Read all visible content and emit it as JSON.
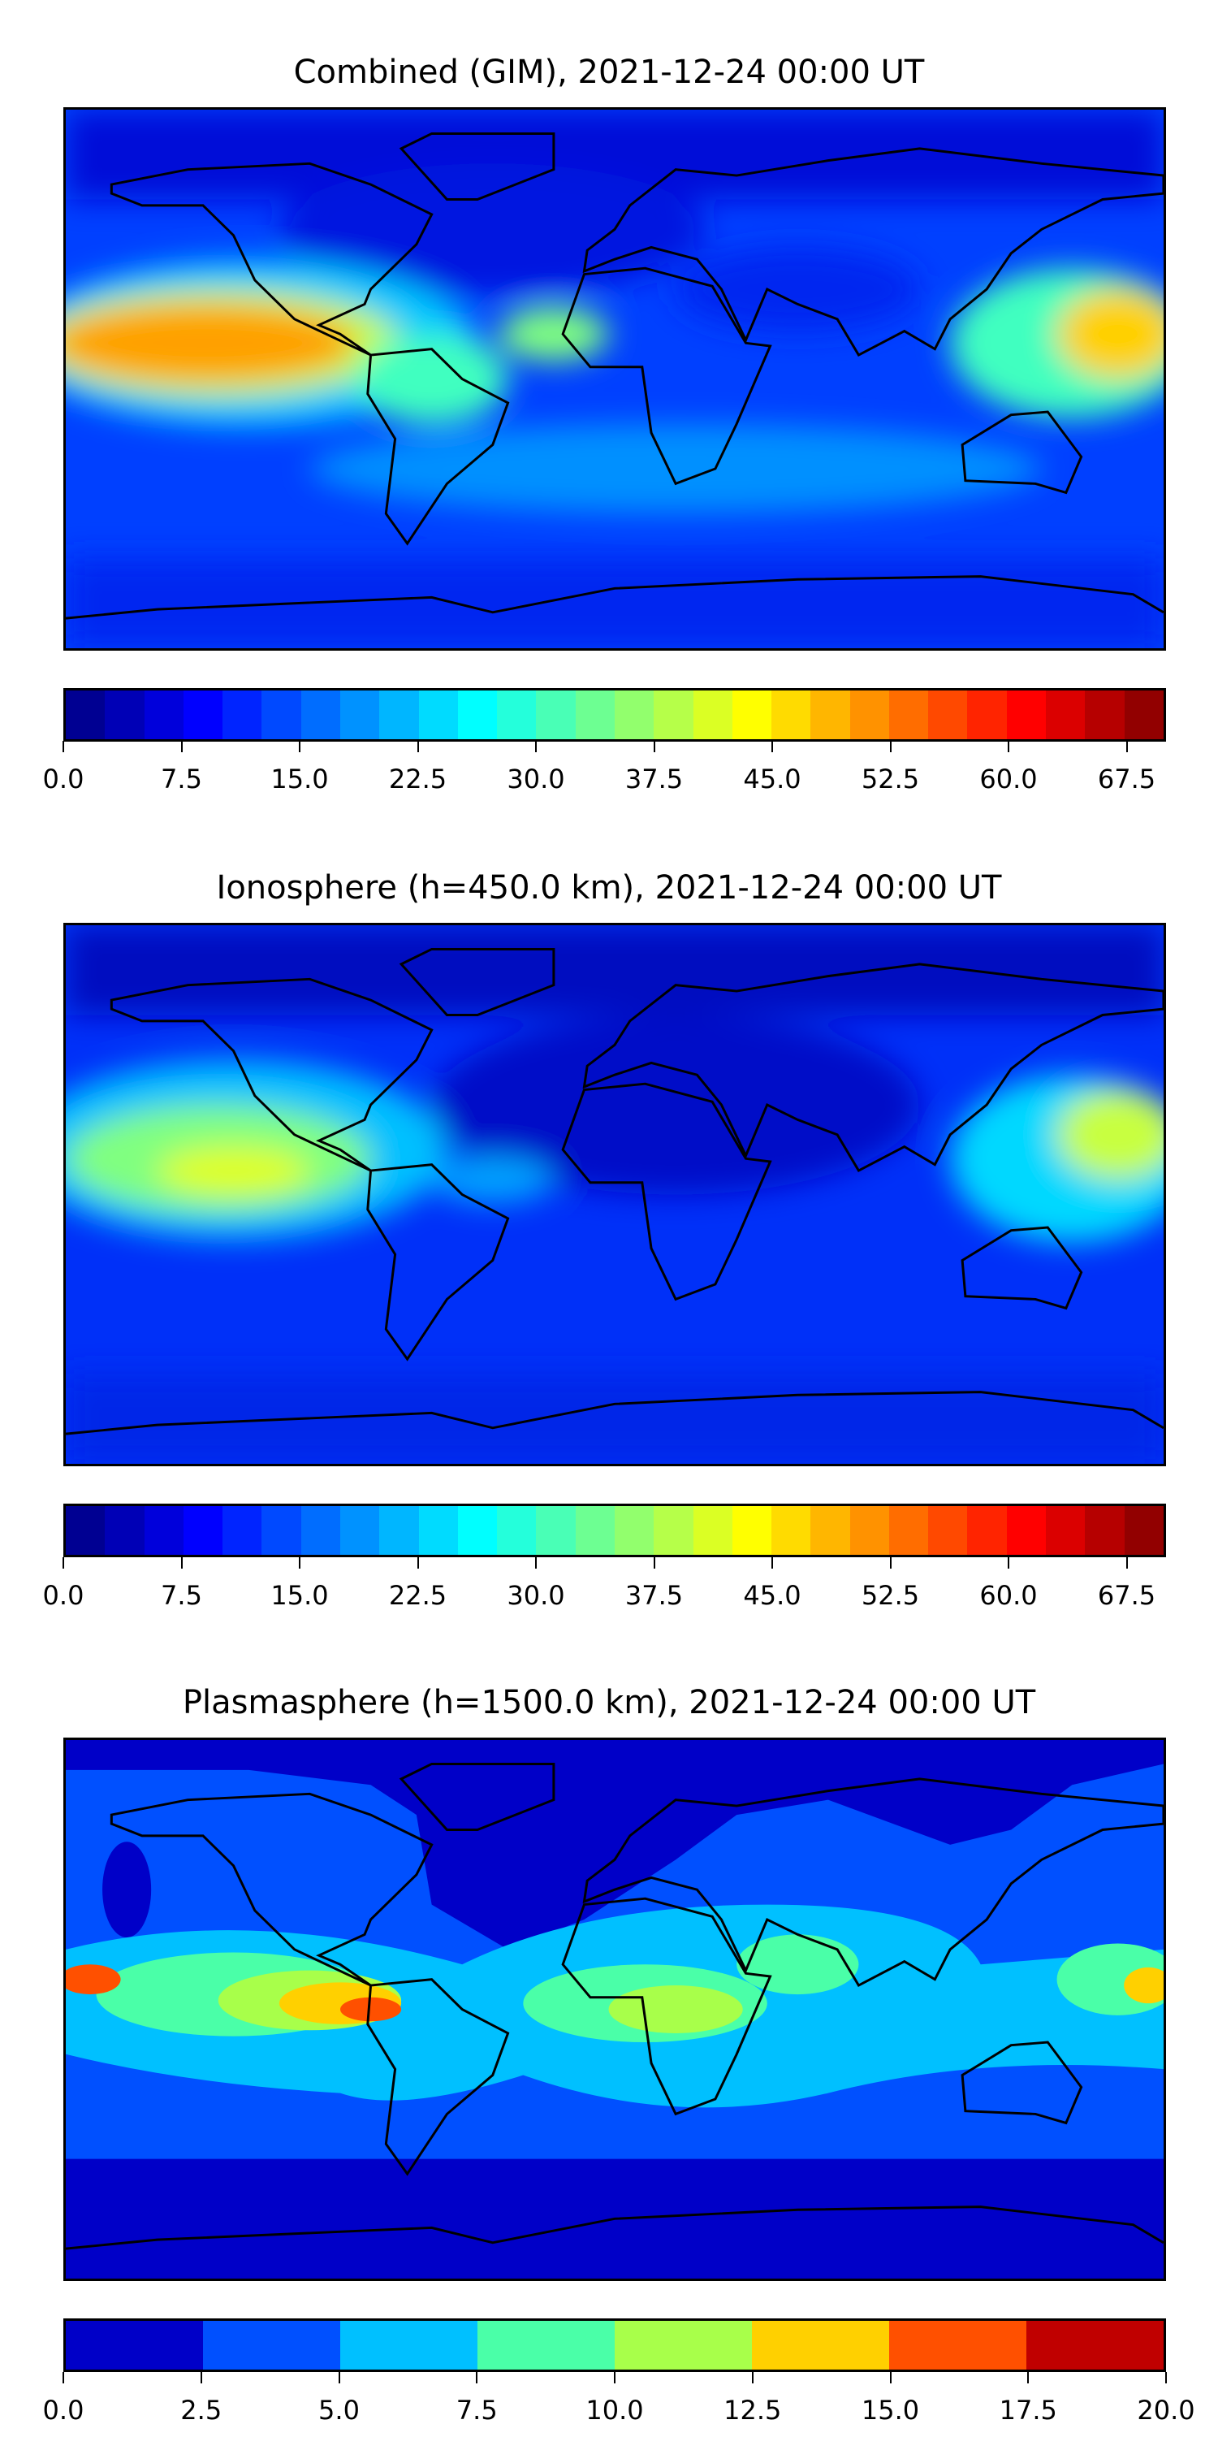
{
  "chart_data": [
    {
      "type": "heatmap",
      "title": "Combined (GIM), 2021-12-24 00:00 UT",
      "colormap": "jet",
      "levels_min": 0.0,
      "levels_max": 70.0,
      "level_step": 2.5,
      "colorbar_ticks": [
        "0.0",
        "7.5",
        "15.0",
        "22.5",
        "30.0",
        "37.5",
        "45.0",
        "52.5",
        "60.0",
        "67.5"
      ],
      "tick_values": [
        0,
        7.5,
        15,
        22.5,
        30,
        37.5,
        45,
        52.5,
        60,
        67.5
      ]
    },
    {
      "type": "heatmap",
      "title": "Ionosphere  (h=450.0 km), 2021-12-24 00:00 UT",
      "colormap": "jet",
      "levels_min": 0.0,
      "levels_max": 70.0,
      "level_step": 2.5,
      "colorbar_ticks": [
        "0.0",
        "7.5",
        "15.0",
        "22.5",
        "30.0",
        "37.5",
        "45.0",
        "52.5",
        "60.0",
        "67.5"
      ],
      "tick_values": [
        0,
        7.5,
        15,
        22.5,
        30,
        37.5,
        45,
        52.5,
        60,
        67.5
      ]
    },
    {
      "type": "heatmap",
      "title": "Plasmasphere (h=1500.0 km), 2021-12-24 00:00 UT",
      "colormap": "jet",
      "levels_min": 0.0,
      "levels_max": 20.0,
      "level_step": 2.5,
      "colorbar_ticks": [
        "0.0",
        "2.5",
        "5.0",
        "7.5",
        "10.0",
        "12.5",
        "15.0",
        "17.5",
        "20.0"
      ],
      "tick_values": [
        0,
        2.5,
        5,
        7.5,
        10,
        12.5,
        15,
        17.5,
        20
      ],
      "bin_colors": [
        "#0000c8",
        "#0050ff",
        "#00c0ff",
        "#4affa8",
        "#a8ff4a",
        "#ffd000",
        "#ff5000",
        "#c00000"
      ]
    }
  ]
}
